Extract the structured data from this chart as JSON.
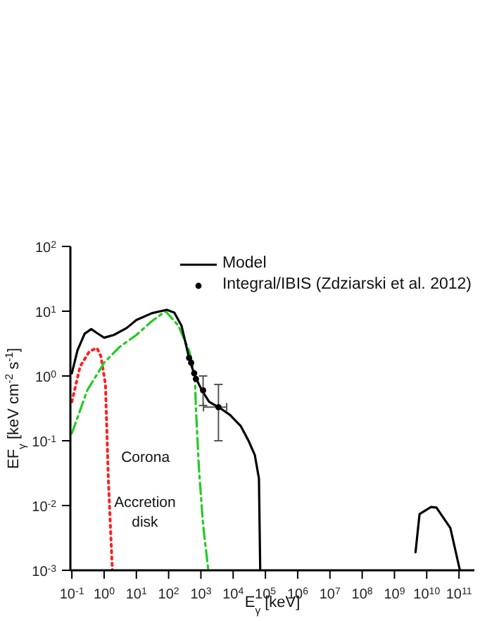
{
  "chart_data": {
    "type": "line",
    "xlabel": "E$_{γ}$ [keV]",
    "ylabel": "EF$_{γ}$ [keV cm$^{-2}$ s$^{-1}$]",
    "log": "xy",
    "grid": false,
    "legend": "top right",
    "xlim": [
      0.09,
      300000000000.0
    ],
    "xticks": [
      {
        "value": 0.1,
        "label": "10$^{-1}$"
      },
      {
        "value": 1,
        "label": "10$^{0}$"
      },
      {
        "value": 10,
        "label": "10$^{1}$"
      },
      {
        "value": 100,
        "label": "10$^{2}$"
      },
      {
        "value": 1000,
        "label": "10$^{3}$"
      },
      {
        "value": 10000,
        "label": "10$^{4}$"
      },
      {
        "value": 100000,
        "label": "10$^{5}$"
      },
      {
        "value": 1000000,
        "label": "10$^{6}$"
      },
      {
        "value": 10000000,
        "label": "10$^{7}$"
      },
      {
        "value": 100000000,
        "label": "10$^{8}$"
      },
      {
        "value": 1000000000,
        "label": "10$^{9}$"
      },
      {
        "value": 10000000000,
        "label": "10$^{10}$"
      },
      {
        "value": 100000000000,
        "label": "10$^{11}$"
      }
    ],
    "ylim": [
      0.001,
      100
    ],
    "yticks": [
      {
        "value": 0.001,
        "label": "10$^{-3}$"
      },
      {
        "value": 0.01,
        "label": "10$^{-2}$"
      },
      {
        "value": 0.1,
        "label": "10$^{-1}$"
      },
      {
        "value": 1,
        "label": "10$^{0}$"
      },
      {
        "value": 10,
        "label": "10$^{1}$"
      },
      {
        "value": 100,
        "label": "10$^{2}$"
      }
    ],
    "annotations": [
      {
        "text": "Corona",
        "x": 870,
        "y": 0.037
      },
      {
        "text": "Accretion disk",
        "x": 1.35,
        "y": 0.026
      }
    ],
    "series": [
      {
        "type": "line",
        "color": "#ff2020",
        "line_style": "dotted",
        "marker": "none",
        "x": [
          0.1,
          0.18,
          0.35,
          0.6,
          0.8,
          1.1,
          1.35,
          1.8
        ],
        "values": [
          0.4,
          1.4,
          2.4,
          2.7,
          2.0,
          0.74,
          0.026,
          0.001
        ]
      },
      {
        "type": "line",
        "color": "#22cc22",
        "line_style": "dashed",
        "marker": "none",
        "x": [
          0.1,
          0.3,
          1,
          3,
          10,
          30,
          80,
          200,
          440,
          650,
          700,
          870,
          1170,
          1700
        ],
        "values": [
          0.13,
          0.6,
          1.6,
          2.8,
          4.3,
          7,
          10,
          6,
          2.4,
          1.0,
          0.32,
          0.037,
          0.005,
          0.001
        ]
      },
      {
        "type": "line",
        "name": "Model",
        "color": "#000000",
        "line_style": "solid",
        "marker": "none",
        "x": [
          0.1,
          0.15,
          0.25,
          0.4,
          0.6,
          1,
          2,
          5,
          10,
          30,
          87,
          150,
          250,
          440,
          650,
          1070,
          1800,
          3900,
          8000,
          17000,
          30000,
          47000,
          63000,
          69000,
          100000000,
          4500000000,
          6000000000,
          13500000000,
          20000000000,
          54000000000,
          107000000000
        ],
        "values": [
          1.1,
          2.5,
          4.5,
          5.3,
          4.6,
          3.9,
          4.3,
          5.5,
          7.3,
          9.3,
          10.5,
          9.5,
          6,
          1.8,
          1.0,
          0.6,
          0.4,
          0.32,
          0.25,
          0.17,
          0.1,
          0.06,
          0.026,
          0.001,
          null,
          0.0019,
          0.0074,
          0.0095,
          0.0093,
          0.0045,
          0.001
        ]
      },
      {
        "type": "scatter",
        "name": "Integral/IBIS (Zdziarski et al. 2012)",
        "color": "#000000",
        "marker": "circle",
        "x": [
          430,
          500,
          620,
          700,
          1170,
          3500
        ],
        "values": [
          1.9,
          1.6,
          1.1,
          0.9,
          0.6,
          0.33
        ],
        "errors": [
          null,
          null,
          null,
          null,
          [
            0.35,
            1.0
          ],
          [
            0.1,
            0.74
          ]
        ],
        "xerrors": [
          null,
          null,
          null,
          null,
          null,
          [
            1200,
            6300
          ]
        ]
      }
    ]
  }
}
